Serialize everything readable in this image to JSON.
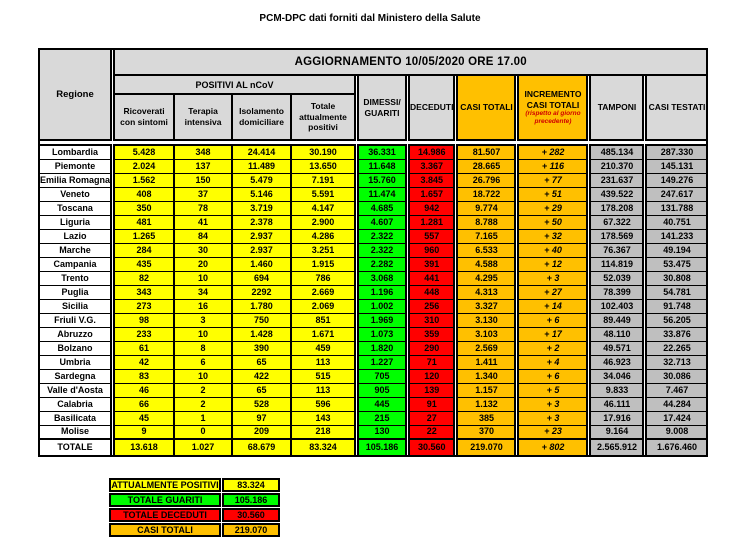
{
  "title": "PCM-DPC dati forniti dal Ministero della Salute",
  "colors": {
    "yellow": "#FFFF00",
    "green": "#00FF00",
    "red": "#FF0000",
    "orange": "#FFC000",
    "silver": "#BFBFBF",
    "header_gray": "#D9D9D9",
    "note_red": "#D00000"
  },
  "table": {
    "update_banner": "AGGIORNAMENTO 10/05/2020 ORE 17.00",
    "headers": {
      "regione": "Regione",
      "positivi_group": "POSITIVI AL nCoV",
      "ricoverati": "Ricoverati con sintomi",
      "terapia": "Terapia intensiva",
      "isolamento": "Isolamento domiciliare",
      "totale_positivi": "Totale attualmente positivi",
      "dimessi": "DIMESSI/ GUARITI",
      "deceduti": "DECEDUTI",
      "casi_totali": "CASI TOTALI",
      "incremento": "INCREMENTO CASI  TOTALI",
      "incremento_note": "(rispetto al giorno precedente)",
      "tamponi": "TAMPONI",
      "casi_testati": "CASI TESTATI"
    },
    "rows": [
      {
        "name": "Lombardia",
        "ricoverati": "5.428",
        "terapia": "348",
        "isolamento": "24.414",
        "totale_positivi": "30.190",
        "dimessi": "36.331",
        "deceduti": "14.986",
        "casi_totali": "81.507",
        "incremento": "+ 282",
        "tamponi": "485.134",
        "casi_testati": "287.330"
      },
      {
        "name": "Piemonte",
        "ricoverati": "2.024",
        "terapia": "137",
        "isolamento": "11.489",
        "totale_positivi": "13.650",
        "dimessi": "11.648",
        "deceduti": "3.367",
        "casi_totali": "28.665",
        "incremento": "+ 116",
        "tamponi": "210.370",
        "casi_testati": "145.131"
      },
      {
        "name": "Emilia Romagna",
        "ricoverati": "1.562",
        "terapia": "150",
        "isolamento": "5.479",
        "totale_positivi": "7.191",
        "dimessi": "15.760",
        "deceduti": "3.845",
        "casi_totali": "26.796",
        "incremento": "+ 77",
        "tamponi": "231.637",
        "casi_testati": "149.276"
      },
      {
        "name": "Veneto",
        "ricoverati": "408",
        "terapia": "37",
        "isolamento": "5.146",
        "totale_positivi": "5.591",
        "dimessi": "11.474",
        "deceduti": "1.657",
        "casi_totali": "18.722",
        "incremento": "+ 51",
        "tamponi": "439.522",
        "casi_testati": "247.617"
      },
      {
        "name": "Toscana",
        "ricoverati": "350",
        "terapia": "78",
        "isolamento": "3.719",
        "totale_positivi": "4.147",
        "dimessi": "4.685",
        "deceduti": "942",
        "casi_totali": "9.774",
        "incremento": "+ 29",
        "tamponi": "178.208",
        "casi_testati": "131.788"
      },
      {
        "name": "Liguria",
        "ricoverati": "481",
        "terapia": "41",
        "isolamento": "2.378",
        "totale_positivi": "2.900",
        "dimessi": "4.607",
        "deceduti": "1.281",
        "casi_totali": "8.788",
        "incremento": "+ 50",
        "tamponi": "67.322",
        "casi_testati": "40.751"
      },
      {
        "name": "Lazio",
        "ricoverati": "1.265",
        "terapia": "84",
        "isolamento": "2.937",
        "totale_positivi": "4.286",
        "dimessi": "2.322",
        "deceduti": "557",
        "casi_totali": "7.165",
        "incremento": "+ 32",
        "tamponi": "178.569",
        "casi_testati": "141.233"
      },
      {
        "name": "Marche",
        "ricoverati": "284",
        "terapia": "30",
        "isolamento": "2.937",
        "totale_positivi": "3.251",
        "dimessi": "2.322",
        "deceduti": "960",
        "casi_totali": "6.533",
        "incremento": "+ 40",
        "tamponi": "76.367",
        "casi_testati": "49.194"
      },
      {
        "name": "Campania",
        "ricoverati": "435",
        "terapia": "20",
        "isolamento": "1.460",
        "totale_positivi": "1.915",
        "dimessi": "2.282",
        "deceduti": "391",
        "casi_totali": "4.588",
        "incremento": "+ 12",
        "tamponi": "114.819",
        "casi_testati": "53.475"
      },
      {
        "name": "Trento",
        "ricoverati": "82",
        "terapia": "10",
        "isolamento": "694",
        "totale_positivi": "786",
        "dimessi": "3.068",
        "deceduti": "441",
        "casi_totali": "4.295",
        "incremento": "+ 3",
        "tamponi": "52.039",
        "casi_testati": "30.808"
      },
      {
        "name": "Puglia",
        "ricoverati": "343",
        "terapia": "34",
        "isolamento": "2292",
        "totale_positivi": "2.669",
        "dimessi": "1.196",
        "deceduti": "448",
        "casi_totali": "4.313",
        "incremento": "+ 27",
        "tamponi": "78.399",
        "casi_testati": "54.781"
      },
      {
        "name": "Sicilia",
        "ricoverati": "273",
        "terapia": "16",
        "isolamento": "1.780",
        "totale_positivi": "2.069",
        "dimessi": "1.002",
        "deceduti": "256",
        "casi_totali": "3.327",
        "incremento": "+ 14",
        "tamponi": "102.403",
        "casi_testati": "91.748"
      },
      {
        "name": "Friuli V.G.",
        "ricoverati": "98",
        "terapia": "3",
        "isolamento": "750",
        "totale_positivi": "851",
        "dimessi": "1.969",
        "deceduti": "310",
        "casi_totali": "3.130",
        "incremento": "+ 6",
        "tamponi": "89.449",
        "casi_testati": "56.205"
      },
      {
        "name": "Abruzzo",
        "ricoverati": "233",
        "terapia": "10",
        "isolamento": "1.428",
        "totale_positivi": "1.671",
        "dimessi": "1.073",
        "deceduti": "359",
        "casi_totali": "3.103",
        "incremento": "+ 17",
        "tamponi": "48.110",
        "casi_testati": "33.876"
      },
      {
        "name": "Bolzano",
        "ricoverati": "61",
        "terapia": "8",
        "isolamento": "390",
        "totale_positivi": "459",
        "dimessi": "1.820",
        "deceduti": "290",
        "casi_totali": "2.569",
        "incremento": "+ 2",
        "tamponi": "49.571",
        "casi_testati": "22.265"
      },
      {
        "name": "Umbria",
        "ricoverati": "42",
        "terapia": "6",
        "isolamento": "65",
        "totale_positivi": "113",
        "dimessi": "1.227",
        "deceduti": "71",
        "casi_totali": "1.411",
        "incremento": "+ 4",
        "tamponi": "46.923",
        "casi_testati": "32.713"
      },
      {
        "name": "Sardegna",
        "ricoverati": "83",
        "terapia": "10",
        "isolamento": "422",
        "totale_positivi": "515",
        "dimessi": "705",
        "deceduti": "120",
        "casi_totali": "1.340",
        "incremento": "+ 6",
        "tamponi": "34.046",
        "casi_testati": "30.086"
      },
      {
        "name": "Valle d'Aosta",
        "ricoverati": "46",
        "terapia": "2",
        "isolamento": "65",
        "totale_positivi": "113",
        "dimessi": "905",
        "deceduti": "139",
        "casi_totali": "1.157",
        "incremento": "+ 5",
        "tamponi": "9.833",
        "casi_testati": "7.467"
      },
      {
        "name": "Calabria",
        "ricoverati": "66",
        "terapia": "2",
        "isolamento": "528",
        "totale_positivi": "596",
        "dimessi": "445",
        "deceduti": "91",
        "casi_totali": "1.132",
        "incremento": "+ 3",
        "tamponi": "46.111",
        "casi_testati": "44.284"
      },
      {
        "name": "Basilicata",
        "ricoverati": "45",
        "terapia": "1",
        "isolamento": "97",
        "totale_positivi": "143",
        "dimessi": "215",
        "deceduti": "27",
        "casi_totali": "385",
        "incremento": "+ 3",
        "tamponi": "17.916",
        "casi_testati": "17.424"
      },
      {
        "name": "Molise",
        "ricoverati": "9",
        "terapia": "0",
        "isolamento": "209",
        "totale_positivi": "218",
        "dimessi": "130",
        "deceduti": "22",
        "casi_totali": "370",
        "incremento": "+ 23",
        "tamponi": "9.164",
        "casi_testati": "9.008"
      }
    ],
    "totale": {
      "name": "TOTALE",
      "ricoverati": "13.618",
      "terapia": "1.027",
      "isolamento": "68.679",
      "totale_positivi": "83.324",
      "dimessi": "105.186",
      "deceduti": "30.560",
      "casi_totali": "219.070",
      "incremento": "+ 802",
      "tamponi": "2.565.912",
      "casi_testati": "1.676.460"
    }
  },
  "summary": {
    "rows": [
      {
        "label": "ATTUALMENTE POSITIVI",
        "value": "83.324",
        "color": "#FFFF00"
      },
      {
        "label": "TOTALE GUARITI",
        "value": "105.186",
        "color": "#00FF00"
      },
      {
        "label": "TOTALE DECEDUTI",
        "value": "30.560",
        "color": "#FF0000"
      },
      {
        "label": "CASI TOTALI",
        "value": "219.070",
        "color": "#FFC000"
      }
    ]
  }
}
